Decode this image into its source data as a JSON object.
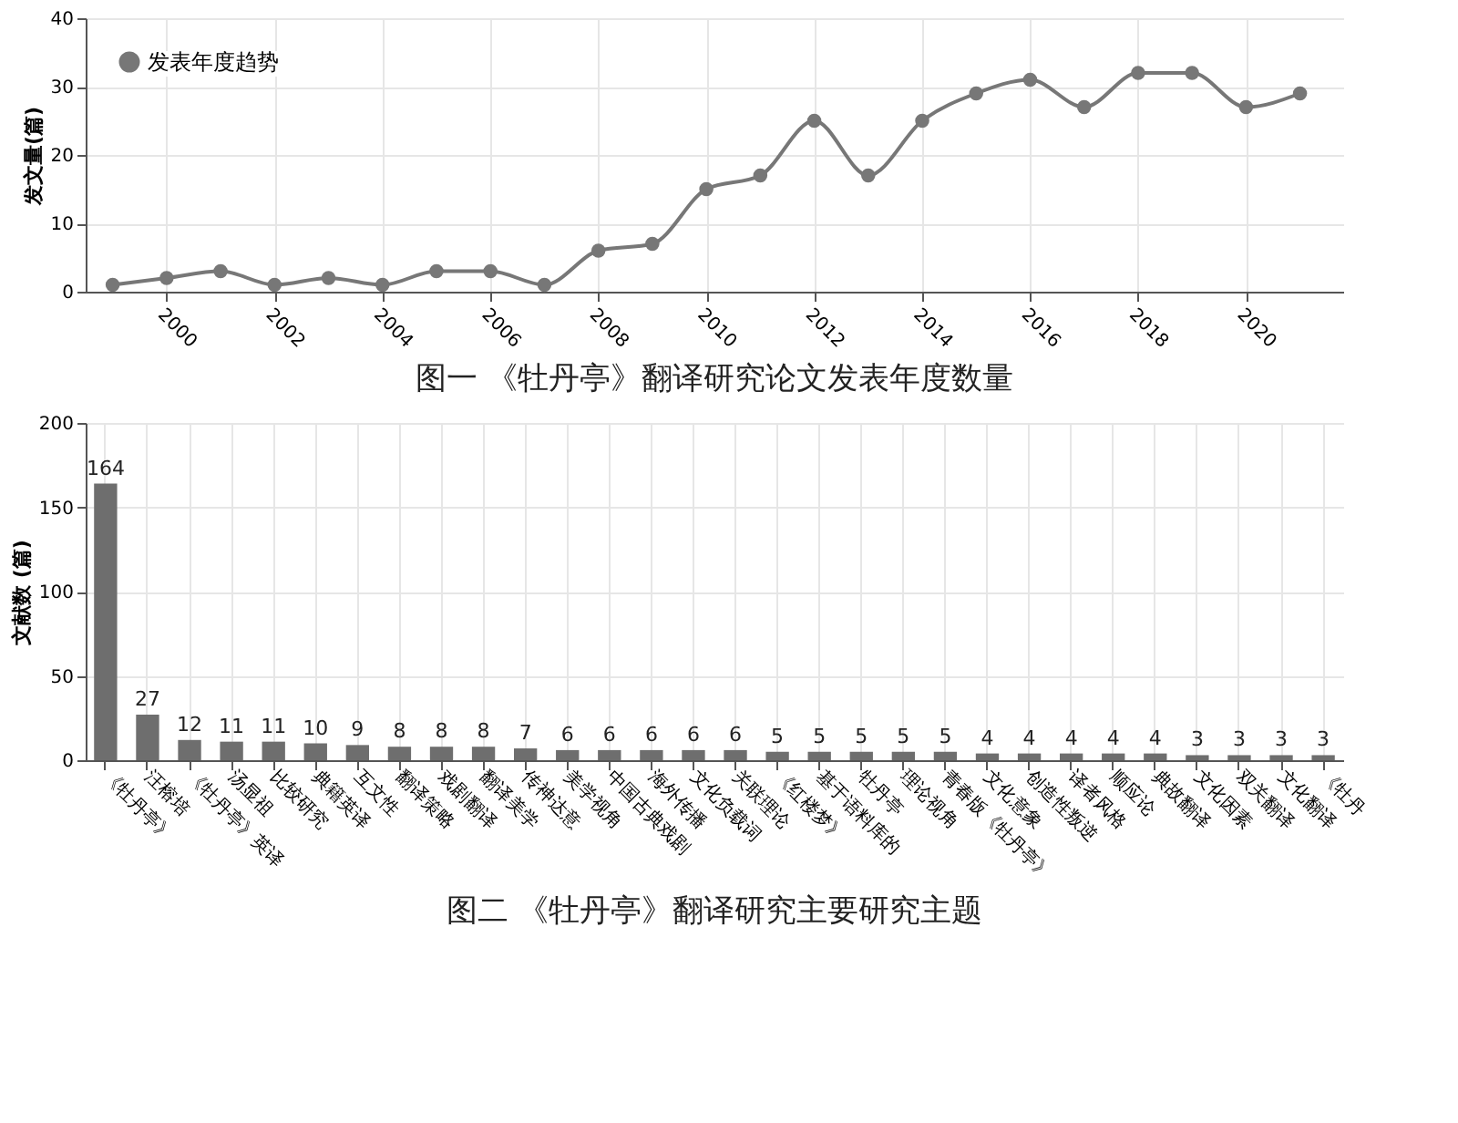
{
  "chart_data": [
    {
      "type": "line",
      "xlabel": null,
      "ylabel": "发文量(篇)",
      "annotations": [
        "图一 《牡丹亭》翻译研究论文发表年度数量"
      ],
      "x": [
        1999,
        2000,
        2001,
        2002,
        2003,
        2004,
        2005,
        2006,
        2007,
        2008,
        2009,
        2010,
        2011,
        2012,
        2013,
        2014,
        2015,
        2016,
        2017,
        2018,
        2019,
        2020,
        2021
      ],
      "series": [
        {
          "name": "发表年度趋势",
          "color": "#777777",
          "values": [
            1,
            2,
            3,
            1,
            2,
            1,
            3,
            3,
            1,
            6,
            7,
            15,
            17,
            25,
            17,
            25,
            29,
            31,
            27,
            32,
            32,
            27,
            29
          ]
        }
      ],
      "xlim": [
        1998.5,
        2021.8
      ],
      "xticks": [
        2000,
        2002,
        2004,
        2006,
        2008,
        2010,
        2012,
        2014,
        2016,
        2018,
        2020
      ],
      "ylim": [
        0,
        40
      ],
      "yticks": [
        0,
        10,
        20,
        30,
        40
      ],
      "grid": true,
      "legend": "top left",
      "marker": "circle",
      "line_style": "solid"
    },
    {
      "type": "bar",
      "ylabel": "文献数 (篇)",
      "annotations": [
        "图二 《牡丹亭》翻译研究主要研究主题"
      ],
      "categories": [
        "《牡丹亭》",
        "汪榕培",
        "《牡丹亭》英译",
        "汤显祖",
        "比较研究",
        "典籍英译",
        "互文性",
        "翻译策略",
        "戏剧翻译",
        "翻译美学",
        "传神达意",
        "美学视角",
        "中国古典戏剧",
        "海外传播",
        "文化负载词",
        "关联理论",
        "《红楼梦》",
        "基于语料库的",
        "牡丹亭",
        "理论视角",
        "青春版《牡丹亭》",
        "文化意象",
        "创造性叛逆",
        "译者风格",
        "顺应论",
        "典故翻译",
        "文化因素",
        "双关翻译",
        "文化翻译",
        "《牡丹"
      ],
      "values": [
        164,
        27,
        12,
        11,
        11,
        10,
        9,
        8,
        8,
        8,
        7,
        6,
        6,
        6,
        6,
        6,
        5,
        5,
        5,
        5,
        5,
        4,
        4,
        4,
        4,
        4,
        3,
        3,
        3,
        3
      ],
      "color": "#6e6e6e",
      "ylim": [
        0,
        200
      ],
      "yticks": [
        0,
        50,
        100,
        150,
        200
      ],
      "grid": true,
      "data_labels": true
    }
  ]
}
